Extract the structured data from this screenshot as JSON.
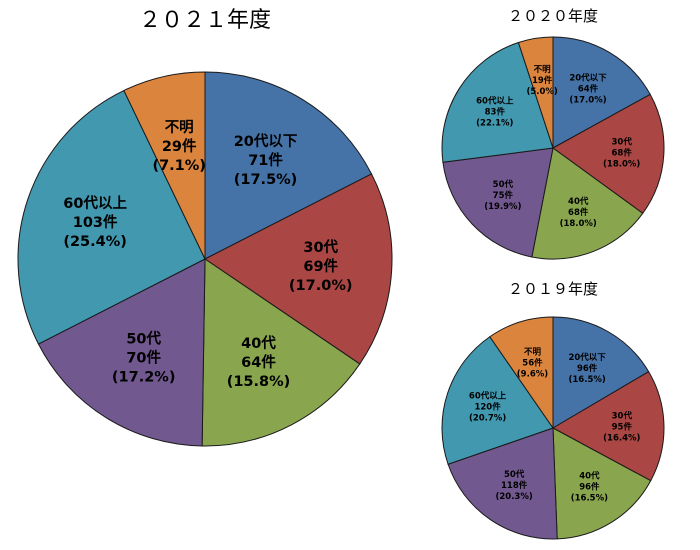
{
  "chart_data": [
    {
      "type": "pie",
      "title": "２０２１年度",
      "categories": [
        "20代以下",
        "30代",
        "40代",
        "50代",
        "60代以上",
        "不明"
      ],
      "values": [
        71,
        69,
        64,
        70,
        103,
        29
      ],
      "count_labels": [
        "71件",
        "69件",
        "64件",
        "70件",
        "103件",
        "29件"
      ],
      "percent_labels": [
        "(17.5%)",
        "(17.0%)",
        "(15.8%)",
        "(17.2%)",
        "(25.4%)",
        "(7.1%)"
      ],
      "colors": [
        "#4572A7",
        "#AA4643",
        "#89A54E",
        "#71588F",
        "#4198AF",
        "#DB843D"
      ],
      "start": "12 o'clock",
      "direction": "clockwise"
    },
    {
      "type": "pie",
      "title": "２０２０年度",
      "categories": [
        "20代以下",
        "30代",
        "40代",
        "50代",
        "60代以上",
        "不明"
      ],
      "values": [
        64,
        68,
        68,
        75,
        83,
        19
      ],
      "count_labels": [
        "64件",
        "68件",
        "68件",
        "75件",
        "83件",
        "19件"
      ],
      "percent_labels": [
        "(17.0%)",
        "(18.0%)",
        "(18.0%)",
        "(19.9%)",
        "(22.1%)",
        "(5.0%)"
      ],
      "colors": [
        "#4572A7",
        "#AA4643",
        "#89A54E",
        "#71588F",
        "#4198AF",
        "#DB843D"
      ],
      "start": "12 o'clock",
      "direction": "clockwise"
    },
    {
      "type": "pie",
      "title": "２０１９年度",
      "categories": [
        "20代以下",
        "30代",
        "40代",
        "50代",
        "60代以上",
        "不明"
      ],
      "values": [
        96,
        95,
        96,
        118,
        120,
        56
      ],
      "count_labels": [
        "96件",
        "95件",
        "96件",
        "118件",
        "120件",
        "56件"
      ],
      "percent_labels": [
        "(16.5%)",
        "(16.4%)",
        "(16.5%)",
        "(20.3%)",
        "(20.7%)",
        "(9.6%)"
      ],
      "colors": [
        "#4572A7",
        "#AA4643",
        "#89A54E",
        "#71588F",
        "#4198AF",
        "#DB843D"
      ],
      "start": "12 o'clock",
      "direction": "clockwise"
    }
  ]
}
